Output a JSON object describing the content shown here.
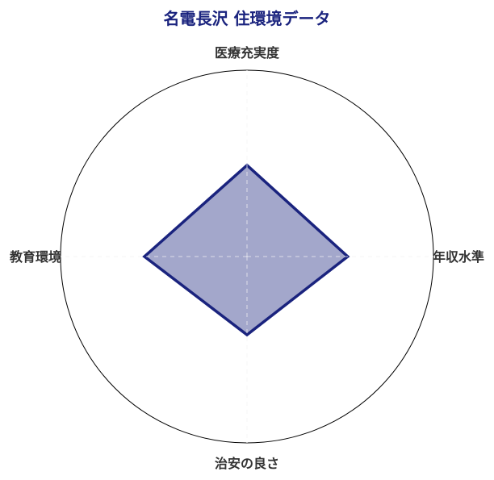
{
  "chart_data": {
    "type": "radar",
    "title": "名電長沢 住環境データ",
    "axes": [
      "医療充実度",
      "年収水準",
      "治安の良さ",
      "教育環境"
    ],
    "series": [
      {
        "values": [
          49,
          54,
          42,
          55
        ]
      }
    ],
    "range": [
      0,
      100
    ],
    "grid": true,
    "colors": {
      "line": "#1a237e",
      "fill": "#1a237e",
      "fill_opacity": 0.4,
      "title": "#1a237e"
    }
  }
}
